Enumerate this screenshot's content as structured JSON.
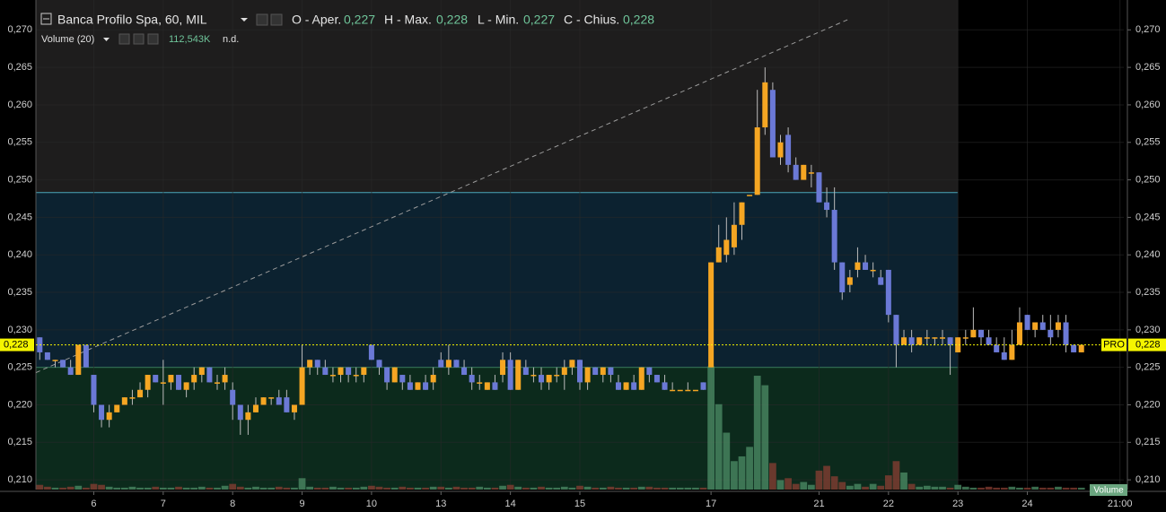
{
  "chart_data": {
    "type": "candlestick",
    "title": "Banca Profilo Spa, 60, MIL",
    "ohlc_legend": [
      {
        "label": "O - Aper.",
        "value": "0,227"
      },
      {
        "label": "H - Max.",
        "value": "0,228"
      },
      {
        "label": "L - Min.",
        "value": "0,227"
      },
      {
        "label": "C - Chius.",
        "value": "0,228"
      }
    ],
    "volume_legend": {
      "label": "Volume (20)",
      "value": "112,543K",
      "extra": "n.d."
    },
    "volume_tag": "Volume",
    "last_price": {
      "value": 0.228,
      "label": "0,228"
    },
    "last_price_tag": "PRO",
    "up_color": "#f5a623",
    "down_color": "#6b79d6",
    "grid": true,
    "ylim": [
      0.2087,
      0.27195
    ],
    "yticks": [
      {
        "value": 0.27,
        "label": "0,270"
      },
      {
        "value": 0.265,
        "label": "0,265"
      },
      {
        "value": 0.26,
        "label": "0,260"
      },
      {
        "value": 0.255,
        "label": "0,255"
      },
      {
        "value": 0.25,
        "label": "0,250"
      },
      {
        "value": 0.245,
        "label": "0,245"
      },
      {
        "value": 0.24,
        "label": "0,240"
      },
      {
        "value": 0.235,
        "label": "0,235"
      },
      {
        "value": 0.23,
        "label": "0,230"
      },
      {
        "value": 0.225,
        "label": "0,225"
      },
      {
        "value": 0.22,
        "label": "0,220"
      },
      {
        "value": 0.215,
        "label": "0,215"
      },
      {
        "value": 0.21,
        "label": "0,210"
      }
    ],
    "xlim": [
      -0.5,
      140.5
    ],
    "xticks": [
      {
        "value": 7,
        "label": "6"
      },
      {
        "value": 16,
        "label": "7"
      },
      {
        "value": 25,
        "label": "8"
      },
      {
        "value": 34,
        "label": "9"
      },
      {
        "value": 43,
        "label": "10"
      },
      {
        "value": 52,
        "label": "13"
      },
      {
        "value": 61,
        "label": "14"
      },
      {
        "value": 70,
        "label": "15"
      },
      {
        "value": 87,
        "label": "17"
      },
      {
        "value": 101,
        "label": "21"
      },
      {
        "value": 110,
        "label": "22"
      },
      {
        "value": 119,
        "label": "23"
      },
      {
        "value": 128,
        "label": "24"
      },
      {
        "value": 140,
        "label": "21:00"
      }
    ],
    "zones": [
      {
        "from": 0.225,
        "to": 0.2483,
        "end": 119,
        "fill": "#0c2230",
        "line": "#4aa8bb"
      },
      {
        "from": 0.2087,
        "to": 0.225,
        "end": 119,
        "fill": "#0c2a1c",
        "line": "#3fc98f"
      }
    ],
    "session_end": 119,
    "trendline": [
      [
        -0.5,
        0.2243
      ],
      [
        104.8,
        0.2714
      ]
    ],
    "volume_lim": [
      0,
      150
    ],
    "candles": [
      [
        0.229,
        0.229,
        0.226,
        0.227
      ],
      [
        0.227,
        0.227,
        0.226,
        0.226
      ],
      [
        0.226,
        0.226,
        0.225,
        0.226
      ],
      [
        0.226,
        0.226,
        0.225,
        0.225
      ],
      [
        0.225,
        0.226,
        0.224,
        0.224
      ],
      [
        0.224,
        0.228,
        0.224,
        0.228
      ],
      [
        0.228,
        0.228,
        0.225,
        0.225
      ],
      [
        0.224,
        0.224,
        0.219,
        0.22
      ],
      [
        0.22,
        0.22,
        0.217,
        0.218
      ],
      [
        0.218,
        0.22,
        0.217,
        0.219
      ],
      [
        0.219,
        0.22,
        0.219,
        0.22
      ],
      [
        0.22,
        0.221,
        0.22,
        0.221
      ],
      [
        0.221,
        0.222,
        0.22,
        0.221
      ],
      [
        0.221,
        0.223,
        0.221,
        0.222
      ],
      [
        0.222,
        0.224,
        0.221,
        0.224
      ],
      [
        0.224,
        0.224,
        0.223,
        0.223
      ],
      [
        0.223,
        0.226,
        0.22,
        0.223
      ],
      [
        0.223,
        0.224,
        0.222,
        0.224
      ],
      [
        0.224,
        0.224,
        0.222,
        0.222
      ],
      [
        0.222,
        0.223,
        0.221,
        0.223
      ],
      [
        0.223,
        0.225,
        0.222,
        0.224
      ],
      [
        0.224,
        0.225,
        0.223,
        0.225
      ],
      [
        0.225,
        0.225,
        0.223,
        0.223
      ],
      [
        0.223,
        0.224,
        0.222,
        0.223
      ],
      [
        0.223,
        0.225,
        0.222,
        0.224
      ],
      [
        0.222,
        0.223,
        0.218,
        0.22
      ],
      [
        0.22,
        0.22,
        0.216,
        0.218
      ],
      [
        0.218,
        0.22,
        0.216,
        0.219
      ],
      [
        0.219,
        0.221,
        0.219,
        0.22
      ],
      [
        0.22,
        0.221,
        0.22,
        0.221
      ],
      [
        0.221,
        0.221,
        0.22,
        0.221
      ],
      [
        0.221,
        0.222,
        0.22,
        0.22
      ],
      [
        0.221,
        0.222,
        0.219,
        0.219
      ],
      [
        0.219,
        0.22,
        0.218,
        0.22
      ],
      [
        0.22,
        0.228,
        0.22,
        0.225
      ],
      [
        0.225,
        0.226,
        0.224,
        0.226
      ],
      [
        0.226,
        0.226,
        0.224,
        0.225
      ],
      [
        0.225,
        0.226,
        0.224,
        0.224
      ],
      [
        0.224,
        0.225,
        0.223,
        0.224
      ],
      [
        0.224,
        0.225,
        0.223,
        0.225
      ],
      [
        0.225,
        0.225,
        0.223,
        0.224
      ],
      [
        0.224,
        0.225,
        0.223,
        0.224
      ],
      [
        0.224,
        0.225,
        0.223,
        0.225
      ],
      [
        0.228,
        0.228,
        0.226,
        0.226
      ],
      [
        0.226,
        0.226,
        0.224,
        0.225
      ],
      [
        0.225,
        0.225,
        0.222,
        0.223
      ],
      [
        0.223,
        0.225,
        0.223,
        0.225
      ],
      [
        0.224,
        0.224,
        0.222,
        0.223
      ],
      [
        0.223,
        0.224,
        0.222,
        0.222
      ],
      [
        0.222,
        0.223,
        0.222,
        0.223
      ],
      [
        0.223,
        0.224,
        0.222,
        0.222
      ],
      [
        0.223,
        0.225,
        0.222,
        0.224
      ],
      [
        0.226,
        0.227,
        0.225,
        0.225
      ],
      [
        0.225,
        0.228,
        0.224,
        0.226
      ],
      [
        0.226,
        0.226,
        0.225,
        0.225
      ],
      [
        0.225,
        0.226,
        0.224,
        0.224
      ],
      [
        0.224,
        0.225,
        0.222,
        0.223
      ],
      [
        0.223,
        0.224,
        0.222,
        0.223
      ],
      [
        0.222,
        0.223,
        0.222,
        0.223
      ],
      [
        0.223,
        0.224,
        0.222,
        0.222
      ],
      [
        0.224,
        0.227,
        0.223,
        0.226
      ],
      [
        0.226,
        0.227,
        0.222,
        0.222
      ],
      [
        0.222,
        0.226,
        0.222,
        0.226
      ],
      [
        0.225,
        0.226,
        0.224,
        0.224
      ],
      [
        0.224,
        0.225,
        0.223,
        0.224
      ],
      [
        0.224,
        0.225,
        0.222,
        0.223
      ],
      [
        0.223,
        0.224,
        0.222,
        0.224
      ],
      [
        0.224,
        0.225,
        0.223,
        0.224
      ],
      [
        0.224,
        0.226,
        0.222,
        0.225
      ],
      [
        0.225,
        0.226,
        0.224,
        0.226
      ],
      [
        0.226,
        0.226,
        0.222,
        0.223
      ],
      [
        0.223,
        0.225,
        0.222,
        0.225
      ],
      [
        0.225,
        0.225,
        0.224,
        0.224
      ],
      [
        0.224,
        0.225,
        0.223,
        0.225
      ],
      [
        0.225,
        0.225,
        0.223,
        0.224
      ],
      [
        0.223,
        0.224,
        0.222,
        0.222
      ],
      [
        0.222,
        0.223,
        0.222,
        0.223
      ],
      [
        0.223,
        0.224,
        0.222,
        0.222
      ],
      [
        0.222,
        0.225,
        0.222,
        0.225
      ],
      [
        0.225,
        0.225,
        0.223,
        0.224
      ],
      [
        0.224,
        0.224,
        0.223,
        0.223
      ],
      [
        0.223,
        0.224,
        0.222,
        0.222
      ],
      [
        0.222,
        0.223,
        0.222,
        0.222
      ],
      [
        0.222,
        0.222,
        0.222,
        0.222
      ],
      [
        0.222,
        0.223,
        0.222,
        0.222
      ],
      [
        0.222,
        0.222,
        0.222,
        0.222
      ],
      [
        0.223,
        0.223,
        0.222,
        0.222
      ],
      [
        0.225,
        0.239,
        0.225,
        0.239
      ],
      [
        0.239,
        0.244,
        0.239,
        0.241
      ],
      [
        0.24,
        0.245,
        0.239,
        0.242
      ],
      [
        0.241,
        0.247,
        0.24,
        0.244
      ],
      [
        0.244,
        0.247,
        0.242,
        0.247
      ],
      [
        0.248,
        0.248,
        0.248,
        0.248
      ],
      [
        0.248,
        0.262,
        0.248,
        0.257
      ],
      [
        0.257,
        0.265,
        0.256,
        0.263
      ],
      [
        0.262,
        0.263,
        0.253,
        0.253
      ],
      [
        0.253,
        0.256,
        0.252,
        0.255
      ],
      [
        0.256,
        0.257,
        0.251,
        0.252
      ],
      [
        0.252,
        0.253,
        0.25,
        0.25
      ],
      [
        0.25,
        0.252,
        0.25,
        0.252
      ],
      [
        0.251,
        0.252,
        0.249,
        0.251
      ],
      [
        0.251,
        0.251,
        0.247,
        0.247
      ],
      [
        0.247,
        0.249,
        0.245,
        0.246
      ],
      [
        0.246,
        0.249,
        0.238,
        0.239
      ],
      [
        0.239,
        0.239,
        0.234,
        0.235
      ],
      [
        0.236,
        0.238,
        0.235,
        0.237
      ],
      [
        0.238,
        0.241,
        0.237,
        0.239
      ],
      [
        0.239,
        0.24,
        0.238,
        0.238
      ],
      [
        0.238,
        0.239,
        0.237,
        0.238
      ],
      [
        0.237,
        0.238,
        0.236,
        0.236
      ],
      [
        0.238,
        0.238,
        0.231,
        0.232
      ],
      [
        0.232,
        0.232,
        0.225,
        0.228
      ],
      [
        0.228,
        0.23,
        0.228,
        0.229
      ],
      [
        0.229,
        0.23,
        0.227,
        0.228
      ],
      [
        0.228,
        0.229,
        0.228,
        0.229
      ],
      [
        0.229,
        0.23,
        0.228,
        0.229
      ],
      [
        0.229,
        0.229,
        0.228,
        0.229
      ],
      [
        0.229,
        0.23,
        0.228,
        0.229
      ],
      [
        0.229,
        0.229,
        0.224,
        0.228
      ],
      [
        0.227,
        0.229,
        0.227,
        0.229
      ],
      [
        0.229,
        0.23,
        0.228,
        0.229
      ],
      [
        0.229,
        0.233,
        0.229,
        0.23
      ],
      [
        0.23,
        0.23,
        0.228,
        0.229
      ],
      [
        0.229,
        0.23,
        0.228,
        0.228
      ],
      [
        0.228,
        0.229,
        0.227,
        0.227
      ],
      [
        0.227,
        0.229,
        0.226,
        0.226
      ],
      [
        0.226,
        0.23,
        0.226,
        0.228
      ],
      [
        0.228,
        0.233,
        0.228,
        0.231
      ],
      [
        0.232,
        0.232,
        0.23,
        0.23
      ],
      [
        0.23,
        0.231,
        0.229,
        0.231
      ],
      [
        0.231,
        0.232,
        0.23,
        0.23
      ],
      [
        0.23,
        0.232,
        0.228,
        0.229
      ],
      [
        0.23,
        0.232,
        0.229,
        0.231
      ],
      [
        0.231,
        0.232,
        0.227,
        0.228
      ],
      [
        0.228,
        0.228,
        0.227,
        0.227
      ],
      [
        0.227,
        0.228,
        0.227,
        0.228
      ]
    ],
    "volume": [
      5,
      3,
      2,
      2,
      3,
      4,
      2,
      6,
      5,
      3,
      2,
      2,
      3,
      2,
      2,
      3,
      2,
      2,
      3,
      2,
      2,
      3,
      2,
      2,
      4,
      6,
      3,
      2,
      3,
      2,
      2,
      3,
      2,
      2,
      12,
      3,
      2,
      2,
      3,
      2,
      2,
      2,
      3,
      4,
      3,
      2,
      2,
      3,
      2,
      2,
      2,
      3,
      3,
      2,
      3,
      2,
      2,
      3,
      2,
      2,
      4,
      5,
      3,
      2,
      2,
      3,
      2,
      2,
      3,
      2,
      4,
      3,
      2,
      2,
      3,
      2,
      2,
      2,
      3,
      3,
      2,
      2,
      2,
      2,
      2,
      2,
      2,
      130,
      90,
      60,
      30,
      35,
      45,
      120,
      110,
      28,
      10,
      12,
      6,
      8,
      5,
      20,
      25,
      14,
      8,
      4,
      6,
      3,
      6,
      4,
      15,
      30,
      18,
      6,
      3,
      4,
      3,
      3,
      2,
      5,
      3,
      2,
      2,
      3,
      2,
      2,
      3,
      2,
      2,
      3,
      2,
      2,
      3,
      2,
      2,
      2
    ]
  }
}
